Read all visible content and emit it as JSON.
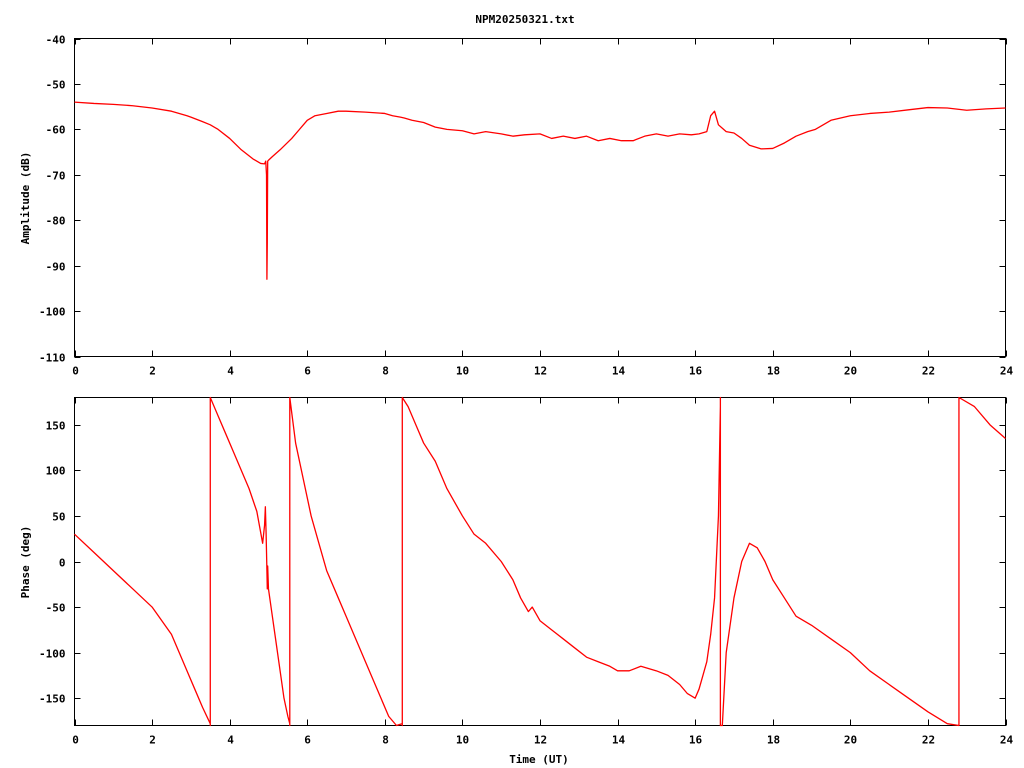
{
  "title": "NPM20250321.txt",
  "chart_data": [
    {
      "type": "line",
      "ylabel": "Amplitude (dB)",
      "xlabel": "",
      "xlim": [
        0,
        24
      ],
      "ylim": [
        -110,
        -40
      ],
      "xticks": [
        "0",
        "2",
        "4",
        "6",
        "8",
        "10",
        "12",
        "14",
        "16",
        "18",
        "20",
        "22",
        "24"
      ],
      "yticks": [
        "-40",
        "-50",
        "-60",
        "-70",
        "-80",
        "-90",
        "-100",
        "-110"
      ],
      "grid": false,
      "series_color": "#ff0000",
      "series": [
        {
          "x": [
            0,
            0.5,
            1,
            1.5,
            2,
            2.5,
            2.7,
            2.9,
            3,
            3.3,
            3.5,
            3.7,
            4,
            4.3,
            4.6,
            4.8,
            4.9,
            4.93,
            4.95,
            4.96,
            4.97,
            4.98,
            5,
            5.1,
            5.3,
            5.6,
            5.8,
            6,
            6.2,
            6.5,
            6.8,
            7,
            7.5,
            8,
            8.2,
            8.4,
            8.5,
            8.7,
            9,
            9.3,
            9.6,
            10,
            10.3,
            10.6,
            11,
            11.3,
            11.6,
            12,
            12.3,
            12.6,
            12.9,
            13.2,
            13.5,
            13.8,
            14.1,
            14.4,
            14.7,
            15,
            15.3,
            15.6,
            15.9,
            16.1,
            16.3,
            16.4,
            16.5,
            16.6,
            16.8,
            17,
            17.2,
            17.4,
            17.7,
            18,
            18.3,
            18.6,
            18.9,
            19.1,
            19.5,
            20,
            20.5,
            21,
            21.5,
            22,
            22.5,
            23,
            23.5,
            24
          ],
          "y": [
            -54,
            -54.3,
            -54.5,
            -54.8,
            -55.3,
            -56,
            -56.5,
            -57,
            -57.3,
            -58.3,
            -59,
            -60,
            -62,
            -64.5,
            -66.5,
            -67.5,
            -67.6,
            -67,
            -70,
            -93,
            -85,
            -67,
            -66.8,
            -66,
            -64.5,
            -62,
            -60,
            -58,
            -57,
            -56.5,
            -56,
            -56,
            -56.2,
            -56.5,
            -57,
            -57.3,
            -57.5,
            -58,
            -58.5,
            -59.5,
            -60,
            -60.3,
            -61,
            -60.5,
            -61,
            -61.5,
            -61.2,
            -61,
            -62,
            -61.5,
            -62,
            -61.5,
            -62.5,
            -62,
            -62.5,
            -62.5,
            -61.5,
            -61,
            -61.5,
            -61,
            -61.2,
            -61,
            -60.5,
            -57,
            -56,
            -59,
            -60.5,
            -60.8,
            -62,
            -63.5,
            -64.3,
            -64.2,
            -63,
            -61.5,
            -60.5,
            -60,
            -58,
            -57,
            -56.5,
            -56.2,
            -55.7,
            -55.2,
            -55.3,
            -55.8,
            -55.5,
            -55.3
          ]
        }
      ]
    },
    {
      "type": "line",
      "ylabel": "Phase (deg)",
      "xlabel": "Time (UT)",
      "xlim": [
        0,
        24
      ],
      "ylim": [
        -180,
        180
      ],
      "xticks": [
        "0",
        "2",
        "4",
        "6",
        "8",
        "10",
        "12",
        "14",
        "16",
        "18",
        "20",
        "22",
        "24"
      ],
      "yticks": [
        "150",
        "100",
        "50",
        "0",
        "-50",
        "-100",
        "-150"
      ],
      "ytick_values": [
        150,
        100,
        50,
        0,
        -50,
        -100,
        -150
      ],
      "grid": false,
      "series_color": "#ff0000",
      "series": [
        {
          "x": [
            0,
            0.5,
            1,
            1.5,
            2,
            2.5,
            2.7,
            2.9,
            3.1,
            3.3,
            3.5,
            3.5,
            3.5,
            3.7,
            3.9,
            4.1,
            4.3,
            4.5,
            4.7,
            4.85,
            4.9,
            4.92,
            4.94,
            4.95,
            4.96,
            4.97,
            4.98,
            5,
            5.1,
            5.2,
            5.3,
            5.4,
            5.5,
            5.55,
            5.55,
            5.55,
            5.7,
            5.9,
            6.1,
            6.3,
            6.5,
            6.8,
            7,
            7.3,
            7.6,
            7.9,
            8.1,
            8.3,
            8.45,
            8.45,
            8.45,
            8.6,
            8.8,
            9,
            9.3,
            9.6,
            10,
            10.3,
            10.6,
            11,
            11.3,
            11.5,
            11.7,
            11.8,
            12,
            12.3,
            12.6,
            12.9,
            13.2,
            13.5,
            13.8,
            14,
            14.3,
            14.6,
            15,
            15.3,
            15.6,
            15.8,
            16,
            16.1,
            16.2,
            16.3,
            16.4,
            16.5,
            16.6,
            16.65,
            16.65,
            16.65,
            16.7,
            16.8,
            17,
            17.2,
            17.4,
            17.6,
            17.8,
            18,
            18.3,
            18.6,
            19,
            19.5,
            20,
            20.5,
            21,
            21.5,
            22,
            22.5,
            22.8,
            22.8,
            22.8,
            23.2,
            23.6,
            24
          ],
          "y": [
            30,
            10,
            -10,
            -30,
            -50,
            -80,
            -100,
            -120,
            -140,
            -160,
            -178,
            -180,
            180,
            160,
            140,
            120,
            100,
            80,
            55,
            20,
            40,
            60,
            30,
            10,
            -10,
            -30,
            -5,
            -30,
            -60,
            -90,
            -120,
            -150,
            -170,
            -178,
            -180,
            180,
            130,
            90,
            50,
            20,
            -10,
            -40,
            -60,
            -90,
            -120,
            -150,
            -170,
            -180,
            -178,
            -180,
            180,
            170,
            150,
            130,
            110,
            80,
            50,
            30,
            20,
            0,
            -20,
            -40,
            -55,
            -50,
            -65,
            -75,
            -85,
            -95,
            -105,
            -110,
            -115,
            -120,
            -120,
            -115,
            -120,
            -125,
            -135,
            -145,
            -150,
            -140,
            -125,
            -110,
            -80,
            -40,
            50,
            170,
            180,
            -180,
            -180,
            -100,
            -40,
            0,
            20,
            15,
            0,
            -20,
            -40,
            -60,
            -70,
            -85,
            -100,
            -120,
            -135,
            -150,
            -165,
            -178,
            -180,
            -180,
            180,
            170,
            150,
            135
          ]
        }
      ]
    }
  ]
}
